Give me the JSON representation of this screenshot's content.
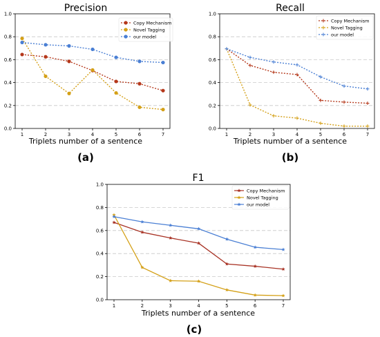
{
  "chart_data": [
    {
      "type": "line",
      "panel_caption": "(a)",
      "title": "Precision",
      "xlabel": "Triplets number of a sentence",
      "ylabel": "",
      "x": [
        1,
        2,
        3,
        4,
        5,
        6,
        7
      ],
      "xticks": [
        "1",
        "2",
        "3",
        "4",
        "5",
        "6",
        "7"
      ],
      "ylim": [
        0.0,
        1.0
      ],
      "yticks": [
        "0.0",
        "0.2",
        "0.4",
        "0.6",
        "0.8",
        "1.0"
      ],
      "grid": "horizontal dashed",
      "line_style": "dotted",
      "marker": "circle",
      "legend_position": "top-right",
      "series": [
        {
          "name": "Copy Mechanism",
          "color": "#b5381b",
          "values": [
            0.645,
            0.625,
            0.585,
            0.505,
            0.41,
            0.39,
            0.33
          ]
        },
        {
          "name": "Novel Tagging",
          "color": "#d4a017",
          "values": [
            0.785,
            0.455,
            0.305,
            0.51,
            0.31,
            0.185,
            0.165
          ]
        },
        {
          "name": "our model",
          "color": "#4a7fd4",
          "values": [
            0.75,
            0.73,
            0.72,
            0.69,
            0.62,
            0.585,
            0.575
          ]
        }
      ]
    },
    {
      "type": "line",
      "panel_caption": "(b)",
      "title": "Recall",
      "xlabel": "Triplets number of a sentence",
      "ylabel": "",
      "x": [
        1,
        2,
        3,
        4,
        5,
        6,
        7
      ],
      "xticks": [
        "1",
        "2",
        "3",
        "4",
        "5",
        "6",
        "7"
      ],
      "ylim": [
        0.0,
        1.0
      ],
      "yticks": [
        "0.0",
        "0.2",
        "0.4",
        "0.6",
        "0.8",
        "1.0"
      ],
      "grid": "horizontal dashed",
      "line_style": "dotted",
      "marker": "plus",
      "legend_position": "top-right",
      "series": [
        {
          "name": "Copy Mechanism",
          "color": "#b5381b",
          "values": [
            0.695,
            0.55,
            0.49,
            0.47,
            0.245,
            0.23,
            0.22
          ]
        },
        {
          "name": "Novel Tagging",
          "color": "#d4a017",
          "values": [
            0.695,
            0.205,
            0.11,
            0.09,
            0.045,
            0.02,
            0.02
          ]
        },
        {
          "name": "our model",
          "color": "#4a7fd4",
          "values": [
            0.695,
            0.62,
            0.58,
            0.555,
            0.45,
            0.37,
            0.345
          ]
        }
      ]
    },
    {
      "type": "line",
      "panel_caption": "(c)",
      "title": "F1",
      "xlabel": "Triplets number of a sentence",
      "ylabel": "",
      "x": [
        1,
        2,
        3,
        4,
        5,
        6,
        7
      ],
      "xticks": [
        "1",
        "2",
        "3",
        "4",
        "5",
        "6",
        "7"
      ],
      "ylim": [
        0.0,
        1.0
      ],
      "yticks": [
        "0.0",
        "0.2",
        "0.4",
        "0.6",
        "0.8",
        "1.0"
      ],
      "grid": "horizontal dashed",
      "line_style": "solid",
      "marker": "star",
      "legend_position": "top-right",
      "series": [
        {
          "name": "Copy Mechanism",
          "color": "#a83224",
          "values": [
            0.67,
            0.585,
            0.535,
            0.49,
            0.31,
            0.29,
            0.265
          ]
        },
        {
          "name": "Novel Tagging",
          "color": "#d4a017",
          "values": [
            0.735,
            0.28,
            0.165,
            0.16,
            0.085,
            0.04,
            0.035
          ]
        },
        {
          "name": "our model",
          "color": "#4a7fd4",
          "values": [
            0.72,
            0.675,
            0.645,
            0.615,
            0.525,
            0.455,
            0.435
          ]
        }
      ]
    }
  ]
}
